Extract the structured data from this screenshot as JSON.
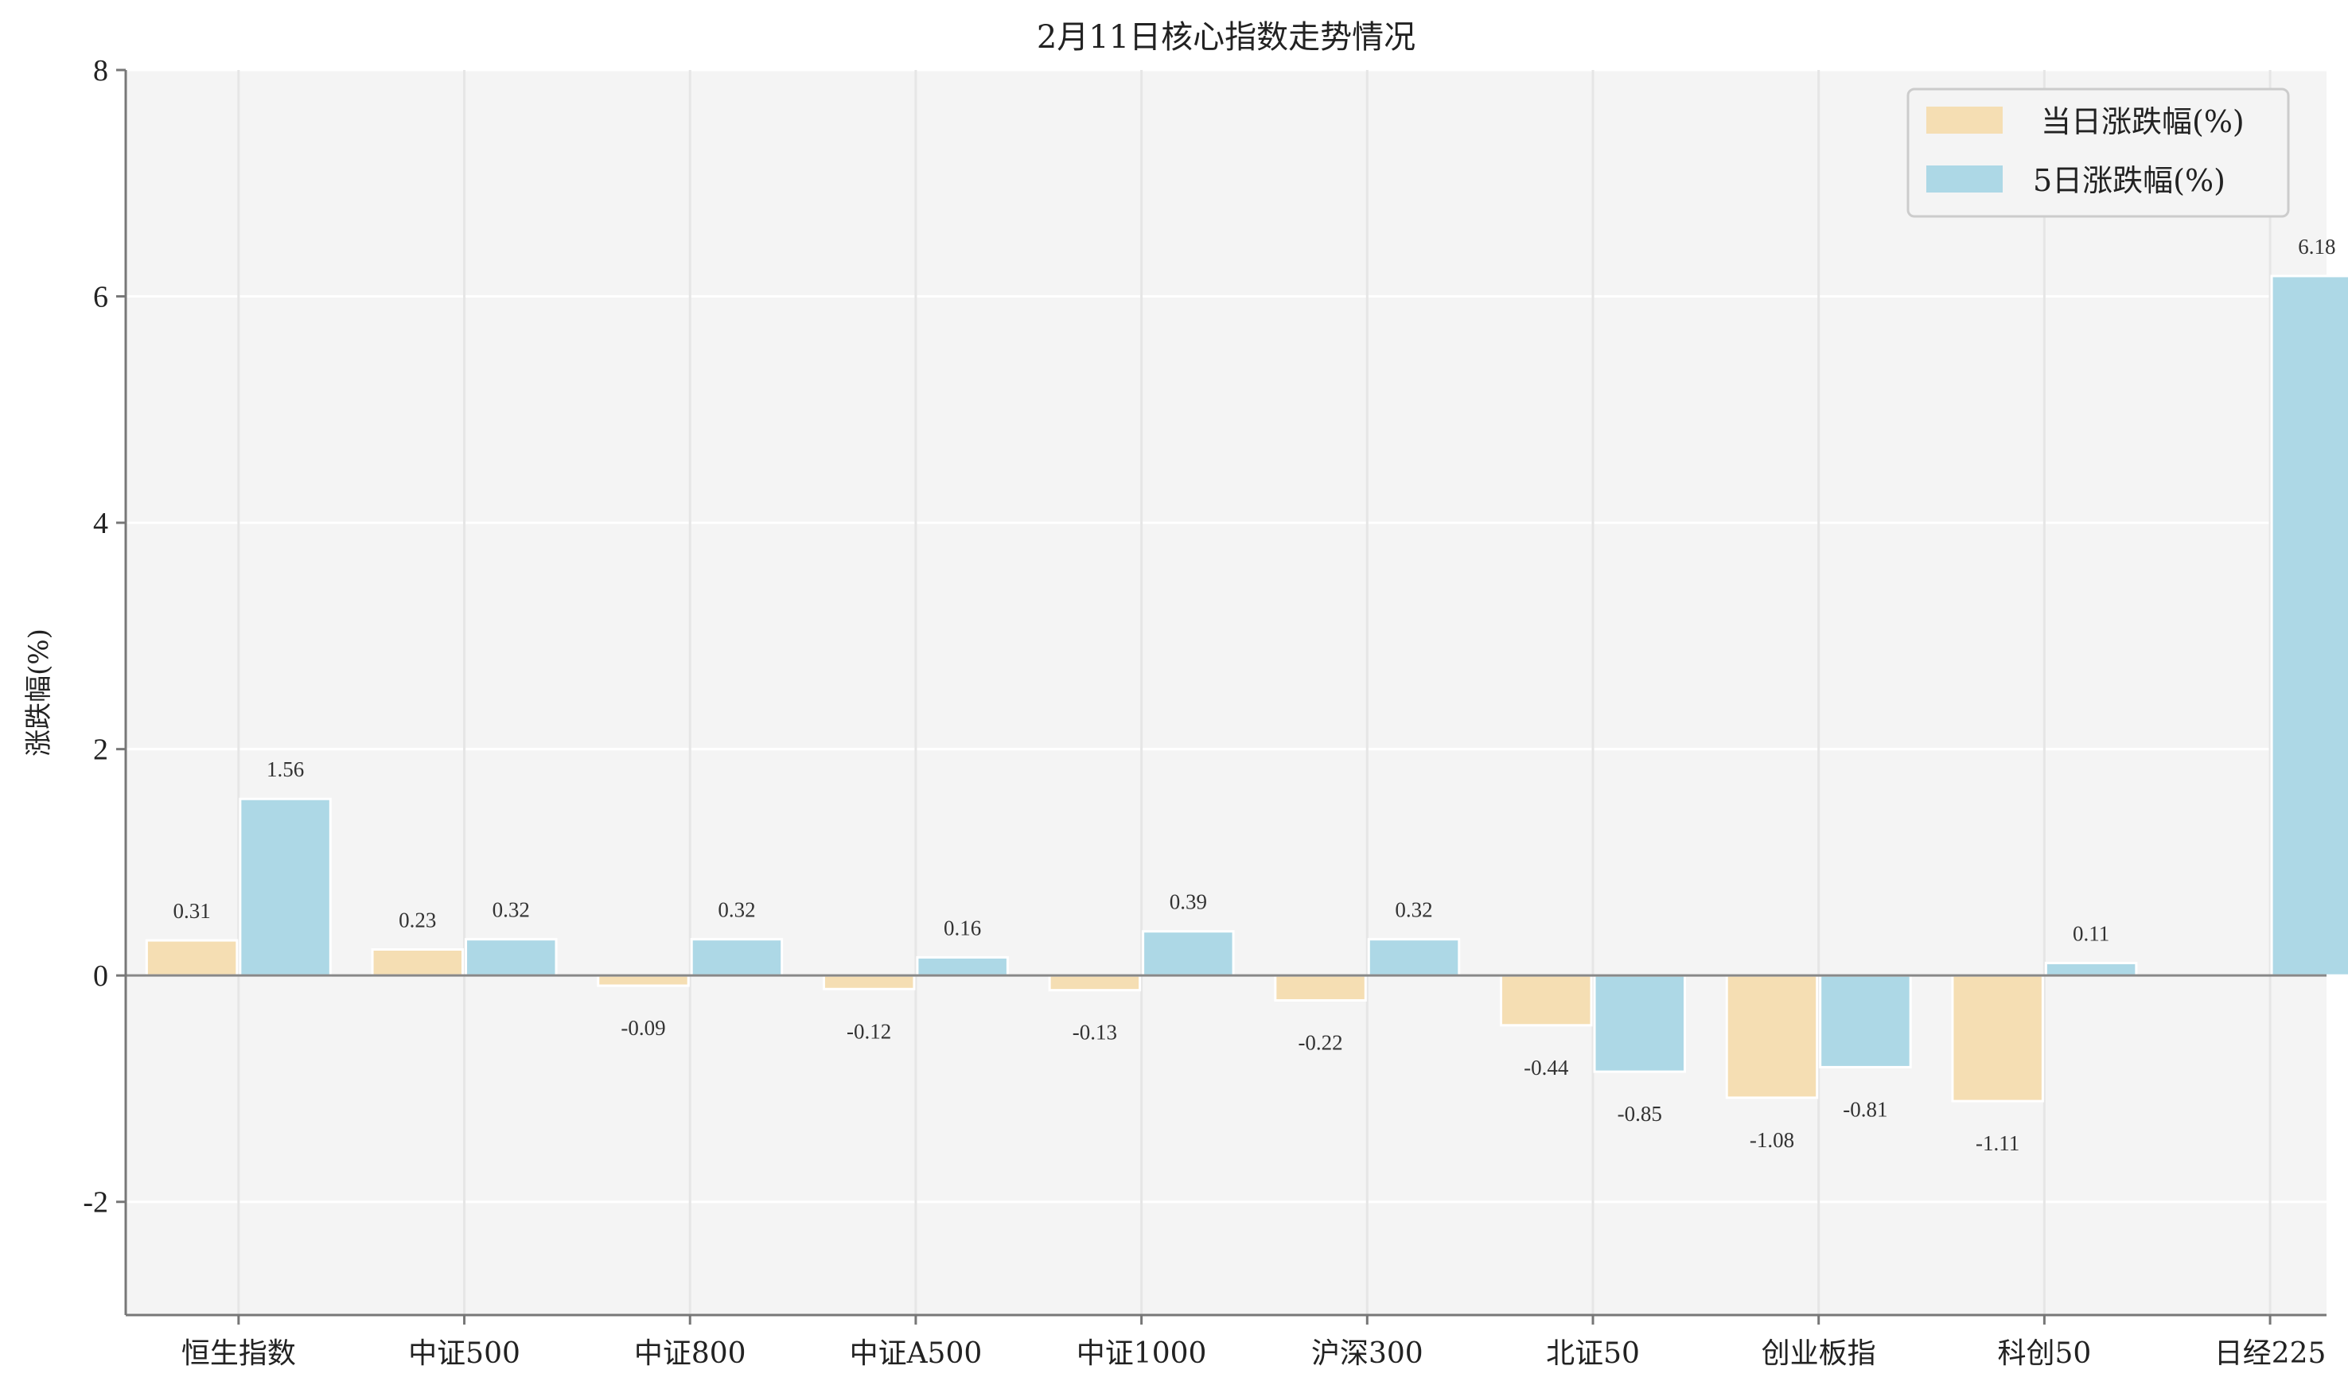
{
  "chart_data": {
    "type": "bar",
    "title": "2月11日核心指数走势情况",
    "xlabel": "",
    "ylabel": "涨跌幅(%)",
    "ylim": [
      -3,
      8
    ],
    "yticks": [
      -2,
      0,
      2,
      4,
      6,
      8
    ],
    "grid": true,
    "legend_position": "top-right",
    "categories": [
      "恒生指数",
      "中证500",
      "中证800",
      "中证A500",
      "中证1000",
      "沪深300",
      "北证50",
      "创业板指",
      "科创50",
      "日经225"
    ],
    "series": [
      {
        "name": "当日涨跌幅(%)",
        "color": "#f5deb3",
        "values": [
          0.31,
          0.23,
          -0.09,
          -0.12,
          -0.13,
          -0.22,
          -0.44,
          -1.08,
          -1.11,
          null
        ]
      },
      {
        "name": "5日涨跌幅(%)",
        "color": "#add8e6",
        "values": [
          1.56,
          0.32,
          0.32,
          0.16,
          0.39,
          0.32,
          -0.85,
          -0.81,
          0.11,
          6.18
        ]
      }
    ]
  },
  "colors": {
    "plot_background": "#f4f4f4",
    "grid": "#ffffff",
    "zero_line": "#888888",
    "axis": "#777777"
  }
}
